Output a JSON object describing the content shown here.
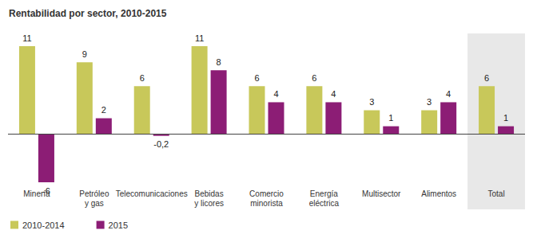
{
  "chart_data": {
    "type": "bar",
    "title": "Rentabilidad por sector, 2010-2015",
    "categories": [
      "Minería",
      "Petróleo\ny gas",
      "Telecomunicaciones",
      "Bebidas\ny licores",
      "Comercio\nminorista",
      "Energía\neléctrica",
      "Multisector",
      "Alimentos",
      "Total"
    ],
    "series": [
      {
        "name": "2010-2014",
        "color": "#c8c85a",
        "values": [
          11,
          9,
          6,
          11,
          6,
          6,
          3,
          3,
          6
        ]
      },
      {
        "name": "2015",
        "color": "#8c1d75",
        "values": [
          -6,
          2,
          -0.2,
          8,
          4,
          4,
          1,
          4,
          1
        ],
        "value_labels": [
          "-6",
          "2",
          "-0,2",
          "8",
          "4",
          "4",
          "1",
          "4",
          "1"
        ]
      }
    ],
    "data_labels": true,
    "tick_labels": "x",
    "grid": false,
    "legend": "bottom-left"
  }
}
